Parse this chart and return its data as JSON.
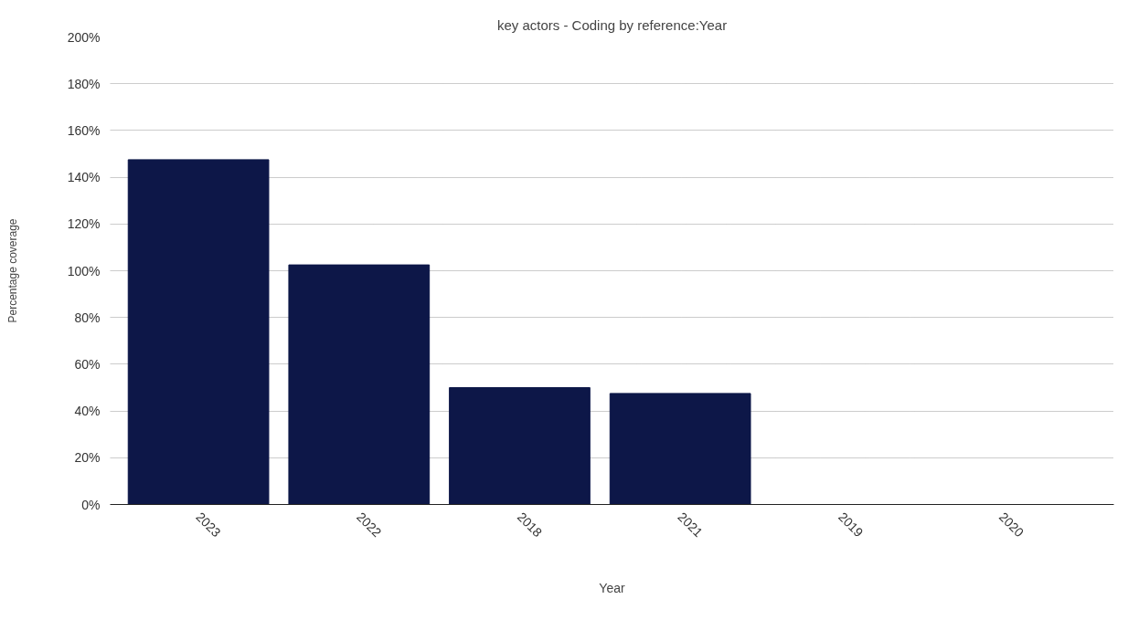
{
  "chart_data": {
    "type": "bar",
    "title": "key actors - Coding by reference:Year",
    "xlabel": "Year",
    "ylabel": "Percentage coverage",
    "categories": [
      "2023",
      "2022",
      "2018",
      "2021",
      "2019",
      "2020"
    ],
    "values": [
      147.5,
      102.5,
      50,
      47.5,
      0,
      0
    ],
    "color": "#0d1748",
    "ylim": [
      0,
      200
    ],
    "yticks": [
      {
        "value": 0,
        "label": "0%"
      },
      {
        "value": 20,
        "label": "20%"
      },
      {
        "value": 40,
        "label": "40%"
      },
      {
        "value": 60,
        "label": "60%"
      },
      {
        "value": 80,
        "label": "80%"
      },
      {
        "value": 100,
        "label": "100%"
      },
      {
        "value": 120,
        "label": "120%"
      },
      {
        "value": 140,
        "label": "140%"
      },
      {
        "value": 160,
        "label": "160%"
      },
      {
        "value": 180,
        "label": "180%"
      },
      {
        "value": 200,
        "label": "200%"
      }
    ],
    "grid": "y"
  }
}
